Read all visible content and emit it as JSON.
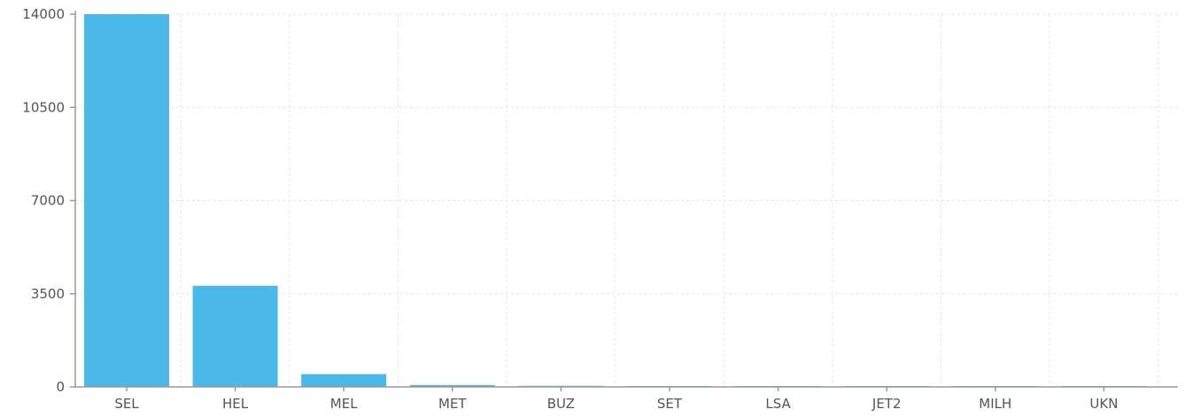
{
  "chart_data": {
    "type": "bar",
    "title": "",
    "xlabel": "",
    "ylabel": "",
    "categories": [
      "SEL",
      "HEL",
      "MEL",
      "MET",
      "BUZ",
      "SET",
      "LSA",
      "JET2",
      "MILH",
      "UKN"
    ],
    "values": [
      14000,
      3800,
      480,
      70,
      40,
      10,
      5,
      3,
      2,
      1
    ],
    "ylim": [
      0,
      14000
    ],
    "yticks": [
      0,
      3500,
      7000,
      10500,
      14000
    ],
    "ytick_labels": [
      "0",
      "3500",
      "7000",
      "10500",
      "14000"
    ],
    "grid": true,
    "legend": "none",
    "bar_color": "#4ab8e8",
    "axis_color": "#9a9a9a",
    "grid_color": "#e6e6e6",
    "label_color": "#555555"
  }
}
